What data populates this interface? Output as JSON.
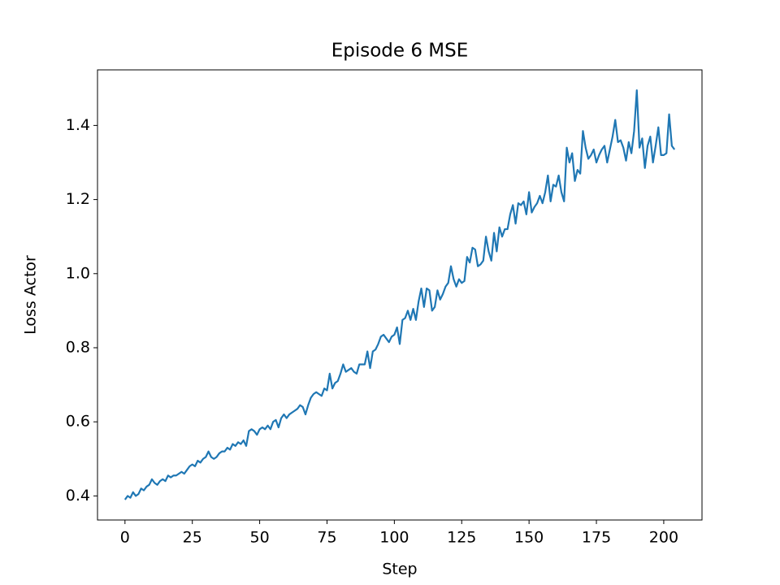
{
  "chart_data": {
    "type": "line",
    "title": "Episode 6 MSE",
    "xlabel": "Step",
    "ylabel": "Loss Actor",
    "x": [
      0,
      1,
      2,
      3,
      4,
      5,
      6,
      7,
      8,
      9,
      10,
      11,
      12,
      13,
      14,
      15,
      16,
      17,
      18,
      19,
      20,
      21,
      22,
      23,
      24,
      25,
      26,
      27,
      28,
      29,
      30,
      31,
      32,
      33,
      34,
      35,
      36,
      37,
      38,
      39,
      40,
      41,
      42,
      43,
      44,
      45,
      46,
      47,
      48,
      49,
      50,
      51,
      52,
      53,
      54,
      55,
      56,
      57,
      58,
      59,
      60,
      61,
      62,
      63,
      64,
      65,
      66,
      67,
      68,
      69,
      70,
      71,
      72,
      73,
      74,
      75,
      76,
      77,
      78,
      79,
      80,
      81,
      82,
      83,
      84,
      85,
      86,
      87,
      88,
      89,
      90,
      91,
      92,
      93,
      94,
      95,
      96,
      97,
      98,
      99,
      100,
      101,
      102,
      103,
      104,
      105,
      106,
      107,
      108,
      109,
      110,
      111,
      112,
      113,
      114,
      115,
      116,
      117,
      118,
      119,
      120,
      121,
      122,
      123,
      124,
      125,
      126,
      127,
      128,
      129,
      130,
      131,
      132,
      133,
      134,
      135,
      136,
      137,
      138,
      139,
      140,
      141,
      142,
      143,
      144,
      145,
      146,
      147,
      148,
      149,
      150,
      151,
      152,
      153,
      154,
      155,
      156,
      157,
      158,
      159,
      160,
      161,
      162,
      163,
      164,
      165,
      166,
      167,
      168,
      169,
      170,
      171,
      172,
      173,
      174,
      175,
      176,
      177,
      178,
      179,
      180,
      181,
      182,
      183,
      184,
      185,
      186,
      187,
      188,
      189,
      190,
      191,
      192,
      193,
      194,
      195,
      196,
      197,
      198,
      199,
      200,
      201,
      202,
      203,
      204
    ],
    "series": [
      {
        "name": "Loss Actor",
        "color": "#1f77b4",
        "values": [
          0.39,
          0.4,
          0.395,
          0.41,
          0.4,
          0.405,
          0.42,
          0.415,
          0.425,
          0.43,
          0.445,
          0.435,
          0.43,
          0.44,
          0.445,
          0.44,
          0.455,
          0.45,
          0.455,
          0.455,
          0.46,
          0.465,
          0.46,
          0.47,
          0.48,
          0.485,
          0.48,
          0.495,
          0.49,
          0.5,
          0.505,
          0.52,
          0.505,
          0.5,
          0.505,
          0.515,
          0.52,
          0.52,
          0.53,
          0.525,
          0.54,
          0.535,
          0.545,
          0.54,
          0.55,
          0.535,
          0.575,
          0.58,
          0.575,
          0.565,
          0.58,
          0.585,
          0.58,
          0.59,
          0.58,
          0.6,
          0.605,
          0.585,
          0.61,
          0.62,
          0.61,
          0.62,
          0.625,
          0.63,
          0.635,
          0.645,
          0.64,
          0.62,
          0.645,
          0.665,
          0.675,
          0.68,
          0.675,
          0.67,
          0.69,
          0.685,
          0.73,
          0.69,
          0.705,
          0.71,
          0.73,
          0.755,
          0.735,
          0.74,
          0.745,
          0.735,
          0.73,
          0.755,
          0.755,
          0.755,
          0.79,
          0.745,
          0.79,
          0.795,
          0.81,
          0.83,
          0.835,
          0.825,
          0.815,
          0.83,
          0.835,
          0.855,
          0.81,
          0.875,
          0.88,
          0.9,
          0.875,
          0.905,
          0.875,
          0.925,
          0.96,
          0.91,
          0.96,
          0.955,
          0.9,
          0.91,
          0.955,
          0.93,
          0.945,
          0.965,
          0.975,
          1.02,
          0.985,
          0.965,
          0.985,
          0.975,
          0.98,
          1.045,
          1.03,
          1.07,
          1.065,
          1.02,
          1.025,
          1.035,
          1.1,
          1.06,
          1.035,
          1.11,
          1.06,
          1.125,
          1.1,
          1.12,
          1.12,
          1.16,
          1.185,
          1.135,
          1.19,
          1.185,
          1.195,
          1.16,
          1.22,
          1.165,
          1.18,
          1.19,
          1.21,
          1.19,
          1.22,
          1.265,
          1.195,
          1.24,
          1.235,
          1.265,
          1.22,
          1.195,
          1.34,
          1.3,
          1.325,
          1.25,
          1.28,
          1.27,
          1.385,
          1.34,
          1.31,
          1.32,
          1.335,
          1.3,
          1.32,
          1.335,
          1.345,
          1.3,
          1.335,
          1.37,
          1.415,
          1.355,
          1.36,
          1.34,
          1.305,
          1.355,
          1.325,
          1.385,
          1.495,
          1.34,
          1.365,
          1.285,
          1.345,
          1.37,
          1.3,
          1.345,
          1.395,
          1.32,
          1.32,
          1.325,
          1.43,
          1.345,
          1.335
        ]
      }
    ],
    "xlim": [
      -10.2,
      214.2
    ],
    "ylim": [
      0.335,
      1.55
    ],
    "xticks": [
      0,
      25,
      50,
      75,
      100,
      125,
      150,
      175,
      200
    ],
    "yticks": [
      0.4,
      0.6,
      0.8,
      {
        "value": 1,
        "label": "1.0"
      },
      1.2,
      1.4
    ],
    "grid": false
  }
}
